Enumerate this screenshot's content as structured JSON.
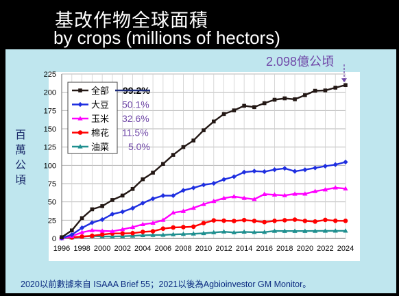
{
  "header": {
    "title_zh": "基改作物全球面積",
    "title_en": "by crops (millions of hectors)",
    "top_annotation": "2.098億公頃"
  },
  "side_label": [
    "百",
    "萬",
    "公",
    "頃"
  ],
  "footer": "2020以前數據來自 ISAAA Brief 55；2021以後為Agbioinvestor GM Monitor。",
  "legend_pcts": [
    "99.2%",
    "50.1%",
    "32.6%",
    "11.5%",
    "5.0%"
  ],
  "colors": {
    "all": "#231815",
    "soy": "#1f2fe0",
    "corn": "#ff00ff",
    "cotton": "#ff0000",
    "canola": "#1f8f8f",
    "pct_text": "#7048a8"
  },
  "chart_data": {
    "type": "line",
    "title": "基改作物全球面積 by crops (millions of hectors)",
    "ylabel": "百萬公頃",
    "ylim": [
      0,
      225
    ],
    "yticks": [
      0,
      25,
      50,
      75,
      100,
      125,
      150,
      175,
      200,
      225
    ],
    "xlim": [
      1996,
      2024
    ],
    "xticks": [
      1996,
      1998,
      2000,
      2002,
      2004,
      2006,
      2008,
      2010,
      2012,
      2014,
      2016,
      2018,
      2020,
      2022,
      2024
    ],
    "grid": true,
    "legend_position": "top-left",
    "x": [
      1996,
      1997,
      1998,
      1999,
      2000,
      2001,
      2002,
      2003,
      2004,
      2005,
      2006,
      2007,
      2008,
      2009,
      2010,
      2011,
      2012,
      2013,
      2014,
      2015,
      2016,
      2017,
      2018,
      2019,
      2020,
      2021,
      2022,
      2023,
      2024
    ],
    "series": [
      {
        "name": "全部",
        "values": [
          1.7,
          11,
          27.8,
          39.9,
          44.2,
          52.6,
          58.7,
          67.7,
          81,
          90,
          102,
          114.3,
          125,
          134,
          148,
          160,
          170.3,
          175.2,
          181.5,
          179.7,
          185.1,
          189.8,
          191.7,
          190.4,
          196,
          202,
          202.5,
          206.3,
          209.8
        ]
      },
      {
        "name": "大豆",
        "values": [
          0.5,
          5.1,
          14.5,
          21.6,
          25.8,
          33.3,
          36.5,
          41.4,
          48.4,
          54.4,
          58.6,
          58.6,
          65.8,
          69.2,
          73.3,
          75.4,
          80.7,
          84.5,
          90.7,
          92.1,
          91.4,
          94.1,
          95.9,
          91.9,
          94,
          96.5,
          98.9,
          101,
          104.5
        ]
      },
      {
        "name": "玉米",
        "values": [
          0.3,
          3.2,
          8.3,
          11.1,
          10.3,
          9.8,
          12.4,
          15.5,
          19.3,
          21.2,
          25.2,
          35.2,
          37.3,
          41.7,
          46.8,
          51,
          55.1,
          57.4,
          55.2,
          53.6,
          60.6,
          59.7,
          58.9,
          60.9,
          61,
          64.5,
          66.8,
          69.5,
          68.2
        ]
      },
      {
        "name": "棉花",
        "values": [
          0.8,
          1.4,
          2.5,
          3.7,
          5.3,
          6.8,
          6.8,
          7.2,
          9,
          9.8,
          13.4,
          15,
          15.5,
          16.1,
          21,
          24.7,
          24.3,
          23.9,
          25.1,
          24,
          22.3,
          24.1,
          24.9,
          25.7,
          24,
          23.1,
          25.4,
          24.2,
          24.1
        ]
      },
      {
        "name": "油菜",
        "values": [
          0.1,
          1.2,
          2.4,
          3.4,
          2.8,
          2.7,
          3,
          3.6,
          4.3,
          4.6,
          4.8,
          5.5,
          5.9,
          6.4,
          7,
          8.2,
          9.2,
          8.2,
          9,
          8.5,
          8.6,
          10.2,
          10.1,
          10.1,
          10.1,
          10.2,
          10.3,
          10.4,
          10.4
        ]
      }
    ]
  }
}
